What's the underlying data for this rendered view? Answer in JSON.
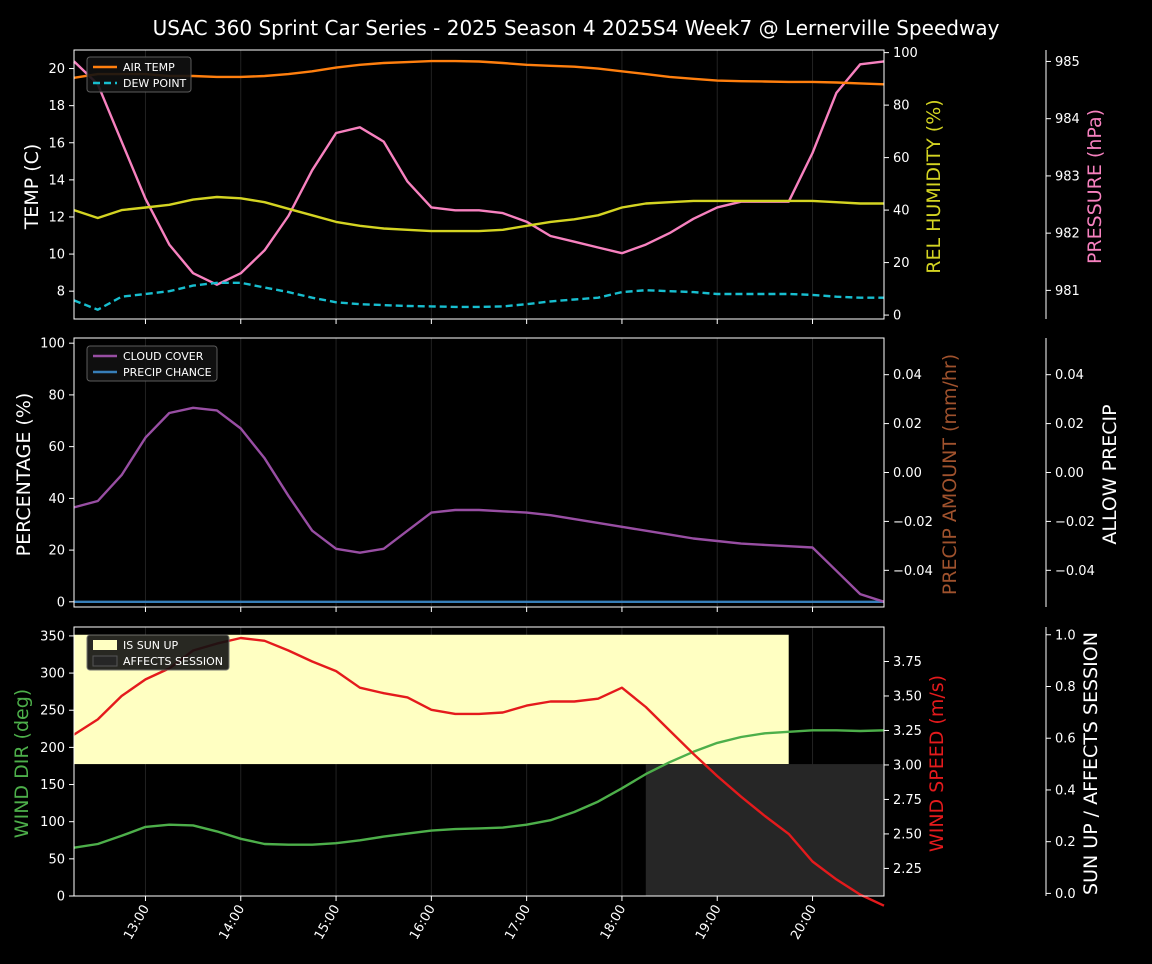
{
  "title": "USAC 360 Sprint Car Series - 2025 Season 4 2025S4 Week7 @ Lernerville Speedway",
  "colors": {
    "background": "#000000",
    "air_temp": "#ff7f0e",
    "dew_point": "#17becf",
    "humidity": "#d4d422",
    "pressure": "#f781bf",
    "cloud_cover": "#984ea3",
    "precip_chance": "#377eb8",
    "precip_amount_label": "#a0522d",
    "wind_dir": "#4daf4a",
    "wind_speed": "#e41a1c",
    "sun_up": "#ffffc2",
    "affects_session": "#262626"
  },
  "chart_data": [
    {
      "type": "line",
      "panel": "temperature",
      "x": [
        "12:15",
        "12:30",
        "12:45",
        "13:00",
        "13:15",
        "13:30",
        "13:45",
        "14:00",
        "14:15",
        "14:30",
        "14:45",
        "15:00",
        "15:15",
        "15:30",
        "15:45",
        "16:00",
        "16:15",
        "16:30",
        "16:45",
        "17:00",
        "17:15",
        "17:30",
        "17:45",
        "18:00",
        "18:15",
        "18:30",
        "18:45",
        "19:00",
        "19:15",
        "19:30",
        "19:45",
        "20:00",
        "20:15",
        "20:30",
        "20:45"
      ],
      "x_ticks": [
        "13:00",
        "14:00",
        "15:00",
        "16:00",
        "17:00",
        "18:00",
        "19:00",
        "20:00"
      ],
      "series": [
        {
          "name": "AIR TEMP",
          "axis": "TEMP (C)",
          "values": [
            19.5,
            19.7,
            19.7,
            19.7,
            19.6,
            19.6,
            19.55,
            19.55,
            19.6,
            19.7,
            19.85,
            20.05,
            20.2,
            20.3,
            20.35,
            20.4,
            20.4,
            20.38,
            20.3,
            20.2,
            20.15,
            20.1,
            20.0,
            19.85,
            19.7,
            19.55,
            19.45,
            19.35,
            19.32,
            19.3,
            19.28,
            19.28,
            19.25,
            19.2,
            19.15
          ]
        },
        {
          "name": "DEW POINT",
          "axis": "TEMP (C)",
          "values": [
            7.5,
            7.0,
            7.7,
            7.85,
            8.0,
            8.3,
            8.45,
            8.45,
            8.2,
            7.95,
            7.65,
            7.4,
            7.3,
            7.25,
            7.2,
            7.18,
            7.15,
            7.15,
            7.18,
            7.3,
            7.45,
            7.55,
            7.65,
            7.95,
            8.05,
            8.0,
            7.95,
            7.85,
            7.85,
            7.85,
            7.85,
            7.8,
            7.7,
            7.65,
            7.65
          ]
        },
        {
          "name": "REL HUMIDITY",
          "axis": "REL HUMIDITY (%)",
          "values": [
            40,
            37,
            40,
            41,
            42,
            44,
            45,
            44.5,
            43,
            40.5,
            38,
            35.5,
            34,
            33,
            32.5,
            32,
            32,
            32,
            32.5,
            34,
            35.5,
            36.5,
            38,
            41,
            42.5,
            43,
            43.5,
            43.5,
            43.5,
            43.5,
            43.5,
            43.5,
            43,
            42.5,
            42.5
          ]
        },
        {
          "name": "PRESSURE",
          "axis": "PRESSURE (hPa)",
          "values": [
            985.0,
            984.6,
            983.6,
            982.6,
            981.8,
            981.3,
            981.1,
            981.3,
            981.7,
            982.3,
            983.1,
            983.75,
            983.85,
            983.6,
            982.9,
            982.45,
            982.4,
            982.4,
            982.35,
            982.2,
            981.95,
            981.85,
            981.75,
            981.65,
            981.8,
            982.0,
            982.25,
            982.45,
            982.55,
            982.55,
            982.55,
            983.4,
            984.45,
            984.95,
            985.0
          ]
        }
      ],
      "ylim_left": [
        6.5,
        21
      ],
      "yticks_left": [
        8,
        10,
        12,
        14,
        16,
        18,
        20
      ],
      "ylim_humidity": [
        -1.5,
        101
      ],
      "yticks_humidity": [
        0,
        20,
        40,
        60,
        80,
        100
      ],
      "ylim_pressure": [
        980.5,
        985.2
      ],
      "yticks_pressure": [
        981,
        982,
        983,
        984,
        985
      ],
      "ylabel_left": "TEMP (C)",
      "ylabel_humidity": "REL HUMIDITY (%)",
      "ylabel_pressure": "PRESSURE (hPa)",
      "legend": "top-left"
    },
    {
      "type": "line",
      "panel": "clouds",
      "x": [
        "12:15",
        "12:30",
        "12:45",
        "13:00",
        "13:15",
        "13:30",
        "13:45",
        "14:00",
        "14:15",
        "14:30",
        "14:45",
        "15:00",
        "15:15",
        "15:30",
        "15:45",
        "16:00",
        "16:15",
        "16:30",
        "16:45",
        "17:00",
        "17:15",
        "17:30",
        "17:45",
        "18:00",
        "18:15",
        "18:30",
        "18:45",
        "19:00",
        "19:15",
        "19:30",
        "19:45",
        "20:00",
        "20:15",
        "20:30",
        "20:45"
      ],
      "series": [
        {
          "name": "CLOUD COVER",
          "axis": "PERCENTAGE (%)",
          "values": [
            36.5,
            39,
            49,
            63.5,
            73,
            75,
            74,
            67,
            55.5,
            41,
            27.5,
            20.5,
            19,
            20.5,
            27.5,
            34.5,
            35.5,
            35.5,
            35,
            34.5,
            33.5,
            32,
            30.5,
            29,
            27.5,
            26,
            24.5,
            23.5,
            22.5,
            22,
            21.5,
            21,
            12,
            3,
            0
          ]
        },
        {
          "name": "PRECIP CHANCE",
          "axis": "PERCENTAGE (%)",
          "values": [
            0,
            0,
            0,
            0,
            0,
            0,
            0,
            0,
            0,
            0,
            0,
            0,
            0,
            0,
            0,
            0,
            0,
            0,
            0,
            0,
            0,
            0,
            0,
            0,
            0,
            0,
            0,
            0,
            0,
            0,
            0,
            0,
            0,
            0,
            0
          ]
        }
      ],
      "ylim_left": [
        -2,
        102
      ],
      "yticks_left": [
        0,
        20,
        40,
        60,
        80,
        100
      ],
      "ylim_right": [
        -0.055,
        0.055
      ],
      "yticks_right": [
        "0.04",
        "0.02",
        "0.00",
        "−0.02",
        "−0.04"
      ],
      "ylabel_left": "PERCENTAGE (%)",
      "ylabel_precip": "PRECIP AMOUNT (mm/hr)",
      "ylabel_allow": "ALLOW PRECIP",
      "legend": "top-left"
    },
    {
      "type": "line",
      "panel": "wind",
      "x": [
        "12:15",
        "12:30",
        "12:45",
        "13:00",
        "13:15",
        "13:30",
        "13:45",
        "14:00",
        "14:15",
        "14:30",
        "14:45",
        "15:00",
        "15:15",
        "15:30",
        "15:45",
        "16:00",
        "16:15",
        "16:30",
        "16:45",
        "17:00",
        "17:15",
        "17:30",
        "17:45",
        "18:00",
        "18:15",
        "18:30",
        "18:45",
        "19:00",
        "19:15",
        "19:30",
        "19:45",
        "20:00",
        "20:15",
        "20:30",
        "20:45"
      ],
      "series": [
        {
          "name": "WIND DIR",
          "axis": "WIND DIR (deg)",
          "values": [
            65,
            70,
            81,
            93,
            96,
            95,
            87,
            77,
            70,
            69,
            69,
            71,
            75,
            80,
            84,
            88,
            90,
            91,
            92,
            96,
            102,
            113,
            127,
            145,
            164,
            180,
            194,
            206,
            214,
            219,
            221,
            223,
            223,
            222,
            223
          ]
        },
        {
          "name": "WIND SPEED",
          "axis": "WIND SPEED (m/s)",
          "values": [
            3.22,
            3.33,
            3.5,
            3.62,
            3.7,
            3.83,
            3.88,
            3.92,
            3.9,
            3.83,
            3.75,
            3.68,
            3.56,
            3.52,
            3.49,
            3.4,
            3.37,
            3.37,
            3.38,
            3.43,
            3.46,
            3.46,
            3.48,
            3.56,
            3.42,
            3.25,
            3.08,
            2.92,
            2.77,
            2.63,
            2.5,
            2.3,
            2.17,
            2.06,
            1.98
          ]
        }
      ],
      "ylim_left": [
        0,
        362
      ],
      "yticks_left": [
        0,
        50,
        100,
        150,
        200,
        250,
        300,
        350
      ],
      "ylim_speed": [
        2.05,
        4.0
      ],
      "yticks_speed": [
        2.25,
        2.5,
        2.75,
        3.0,
        3.25,
        3.5,
        3.75
      ],
      "ylim_flag": [
        -0.01,
        1.03
      ],
      "yticks_flag": [
        0,
        0.2,
        0.4,
        0.6,
        0.8,
        1.0
      ],
      "ylabel_left": "WIND DIR (deg)",
      "ylabel_speed": "WIND SPEED (m/s)",
      "ylabel_flag": "SUN UP / AFFECTS SESSION",
      "legend_labels": [
        "IS SUN UP",
        "AFFECTS SESSION"
      ],
      "sun_up": {
        "start": "12:15",
        "end": "19:45",
        "value": 1.0
      },
      "affects_session": {
        "start": "18:15",
        "end": "20:45",
        "value": 0.5
      }
    }
  ]
}
